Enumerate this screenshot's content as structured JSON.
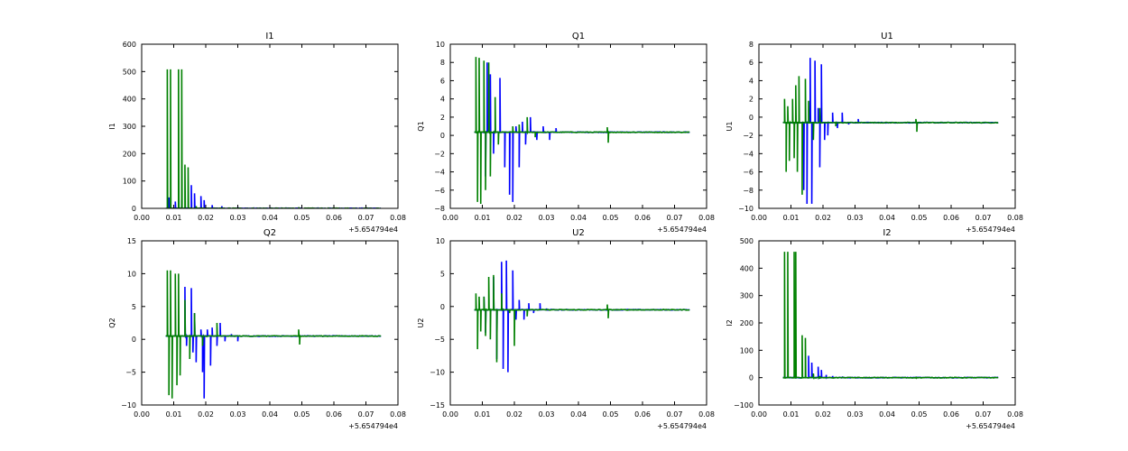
{
  "chart_data": [
    {
      "type": "line",
      "title": "I1",
      "xlabel": "",
      "ylabel": "I1",
      "xlim": [
        0.0,
        0.08
      ],
      "ylim": [
        0,
        600
      ],
      "xticks": [
        "0.00",
        "0.01",
        "0.02",
        "0.03",
        "0.04",
        "0.05",
        "0.06",
        "0.07",
        "0.08"
      ],
      "yticks": [
        "0",
        "100",
        "200",
        "300",
        "400",
        "500",
        "600"
      ],
      "offset_text": "+5.654794e4",
      "series": [
        {
          "color": "#0000ff",
          "baseline": 0,
          "spikes": [
            [
              0.0085,
              40
            ],
            [
              0.0105,
              25
            ],
            [
              0.0125,
              30
            ],
            [
              0.0155,
              85
            ],
            [
              0.0165,
              55
            ],
            [
              0.0185,
              45
            ],
            [
              0.0195,
              30
            ],
            [
              0.022,
              12
            ],
            [
              0.025,
              8
            ],
            [
              0.03,
              5
            ],
            [
              0.035,
              3
            ],
            [
              0.045,
              3
            ],
            [
              0.055,
              3
            ]
          ]
        },
        {
          "color": "#008000",
          "baseline": 0,
          "spikes": [
            [
              0.008,
              508
            ],
            [
              0.009,
              508
            ],
            [
              0.0115,
              508
            ],
            [
              0.0125,
              508
            ],
            [
              0.0135,
              160
            ],
            [
              0.0145,
              150
            ],
            [
              0.017,
              8
            ],
            [
              0.049,
              4
            ],
            [
              0.06,
              3
            ],
            [
              0.07,
              3
            ]
          ]
        }
      ]
    },
    {
      "type": "line",
      "title": "Q1",
      "xlabel": "",
      "ylabel": "Q1",
      "xlim": [
        0.0,
        0.08
      ],
      "ylim": [
        -8,
        10
      ],
      "xticks": [
        "0.00",
        "0.01",
        "0.02",
        "0.03",
        "0.04",
        "0.05",
        "0.06",
        "0.07",
        "0.08"
      ],
      "yticks": [
        "−8",
        "−6",
        "−4",
        "−2",
        "0",
        "2",
        "4",
        "6",
        "8",
        "10"
      ],
      "offset_text": "+5.654794e4",
      "series": [
        {
          "color": "#0000ff",
          "baseline": 0.35,
          "spikes": [
            [
              0.011,
              -4.5
            ],
            [
              0.0115,
              8
            ],
            [
              0.0125,
              6.7
            ],
            [
              0.0135,
              -2
            ],
            [
              0.0155,
              6.3
            ],
            [
              0.017,
              -3.5
            ],
            [
              0.0185,
              -6.5
            ],
            [
              0.0195,
              -7.3
            ],
            [
              0.0205,
              1
            ],
            [
              0.0215,
              -3.5
            ],
            [
              0.0225,
              1.5
            ],
            [
              0.0235,
              -1
            ],
            [
              0.025,
              2
            ],
            [
              0.027,
              -0.5
            ],
            [
              0.029,
              1
            ],
            [
              0.031,
              -0.5
            ],
            [
              0.033,
              0.8
            ]
          ]
        },
        {
          "color": "#008000",
          "baseline": 0.35,
          "spikes": [
            [
              0.008,
              8.6
            ],
            [
              0.0085,
              -7.3
            ],
            [
              0.009,
              8.5
            ],
            [
              0.0095,
              -7.5
            ],
            [
              0.0105,
              8.2
            ],
            [
              0.011,
              -6
            ],
            [
              0.012,
              8
            ],
            [
              0.0125,
              -4.5
            ],
            [
              0.014,
              4.2
            ],
            [
              0.015,
              -1
            ],
            [
              0.0195,
              1
            ],
            [
              0.0215,
              1.2
            ],
            [
              0.024,
              2
            ],
            [
              0.0265,
              -0.2
            ],
            [
              0.049,
              0.9
            ],
            [
              0.0493,
              -0.8
            ]
          ]
        }
      ]
    },
    {
      "type": "line",
      "title": "U1",
      "xlabel": "",
      "ylabel": "U1",
      "xlim": [
        0.0,
        0.08
      ],
      "ylim": [
        -10,
        8
      ],
      "xticks": [
        "0.00",
        "0.01",
        "0.02",
        "0.03",
        "0.04",
        "0.05",
        "0.06",
        "0.07",
        "0.08"
      ],
      "yticks": [
        "−10",
        "−8",
        "−6",
        "−4",
        "−2",
        "0",
        "2",
        "4",
        "6",
        "8"
      ],
      "offset_text": "+5.654794e4",
      "series": [
        {
          "color": "#0000ff",
          "baseline": -0.6,
          "spikes": [
            [
              0.014,
              -8
            ],
            [
              0.015,
              -9.5
            ],
            [
              0.016,
              6.5
            ],
            [
              0.0165,
              -9.5
            ],
            [
              0.0175,
              6.2
            ],
            [
              0.0185,
              1
            ],
            [
              0.019,
              -5.5
            ],
            [
              0.0195,
              5.8
            ],
            [
              0.0205,
              -2.5
            ],
            [
              0.0215,
              -2
            ],
            [
              0.023,
              0.5
            ],
            [
              0.0245,
              -1.2
            ],
            [
              0.026,
              0.5
            ],
            [
              0.028,
              -0.8
            ],
            [
              0.031,
              -0.2
            ]
          ]
        },
        {
          "color": "#008000",
          "baseline": -0.6,
          "spikes": [
            [
              0.008,
              2
            ],
            [
              0.0085,
              -6
            ],
            [
              0.009,
              1.2
            ],
            [
              0.0095,
              -4.8
            ],
            [
              0.0105,
              2
            ],
            [
              0.011,
              -4.5
            ],
            [
              0.0115,
              3.5
            ],
            [
              0.012,
              -6
            ],
            [
              0.0125,
              4.5
            ],
            [
              0.0135,
              -8.5
            ],
            [
              0.0145,
              4.2
            ],
            [
              0.0155,
              1.8
            ],
            [
              0.017,
              -2.5
            ],
            [
              0.019,
              1
            ],
            [
              0.024,
              -1
            ],
            [
              0.049,
              -0.2
            ],
            [
              0.0493,
              -1.6
            ]
          ]
        }
      ]
    },
    {
      "type": "line",
      "title": "Q2",
      "xlabel": "",
      "ylabel": "Q2",
      "xlim": [
        0.0,
        0.08
      ],
      "ylim": [
        -10,
        15
      ],
      "xticks": [
        "0.00",
        "0.01",
        "0.02",
        "0.03",
        "0.04",
        "0.05",
        "0.06",
        "0.07",
        "0.08"
      ],
      "yticks": [
        "−10",
        "−5",
        "0",
        "5",
        "10",
        "15"
      ],
      "offset_text": "+5.654794e4",
      "series": [
        {
          "color": "#0000ff",
          "baseline": 0.5,
          "spikes": [
            [
              0.0135,
              8
            ],
            [
              0.014,
              -1
            ],
            [
              0.0155,
              7.8
            ],
            [
              0.016,
              -2
            ],
            [
              0.0165,
              4
            ],
            [
              0.017,
              -3.5
            ],
            [
              0.0185,
              1.5
            ],
            [
              0.019,
              -5
            ],
            [
              0.0195,
              -9
            ],
            [
              0.0205,
              1.5
            ],
            [
              0.0215,
              -4
            ],
            [
              0.022,
              1.8
            ],
            [
              0.0235,
              -1
            ],
            [
              0.0245,
              2.5
            ],
            [
              0.026,
              -0.3
            ],
            [
              0.028,
              0.8
            ],
            [
              0.03,
              -0.3
            ]
          ]
        },
        {
          "color": "#008000",
          "baseline": 0.5,
          "spikes": [
            [
              0.008,
              10.5
            ],
            [
              0.0085,
              -8.5
            ],
            [
              0.009,
              10.5
            ],
            [
              0.0095,
              -9
            ],
            [
              0.0105,
              10
            ],
            [
              0.011,
              -7
            ],
            [
              0.0115,
              10
            ],
            [
              0.012,
              -5.5
            ],
            [
              0.0135,
              6
            ],
            [
              0.015,
              -3
            ],
            [
              0.0165,
              4
            ],
            [
              0.019,
              -1
            ],
            [
              0.0235,
              2.5
            ],
            [
              0.049,
              1.5
            ],
            [
              0.0493,
              -0.8
            ]
          ]
        }
      ]
    },
    {
      "type": "line",
      "title": "U2",
      "xlabel": "",
      "ylabel": "U2",
      "xlim": [
        0.0,
        0.08
      ],
      "ylim": [
        -15,
        10
      ],
      "xticks": [
        "0.00",
        "0.01",
        "0.02",
        "0.03",
        "0.04",
        "0.05",
        "0.06",
        "0.07",
        "0.08"
      ],
      "yticks": [
        "−15",
        "−10",
        "−5",
        "0",
        "5",
        "10"
      ],
      "offset_text": "+5.654794e4",
      "series": [
        {
          "color": "#0000ff",
          "baseline": -0.5,
          "spikes": [
            [
              0.0105,
              1.5
            ],
            [
              0.011,
              -4
            ],
            [
              0.0135,
              4.5
            ],
            [
              0.0145,
              -8
            ],
            [
              0.016,
              6.8
            ],
            [
              0.0165,
              -9.5
            ],
            [
              0.0175,
              7
            ],
            [
              0.018,
              -10
            ],
            [
              0.0195,
              5.5
            ],
            [
              0.0205,
              -2
            ],
            [
              0.0215,
              1
            ],
            [
              0.023,
              -2
            ],
            [
              0.0245,
              0.5
            ],
            [
              0.026,
              -1
            ],
            [
              0.028,
              0.5
            ],
            [
              0.03,
              -0.3
            ]
          ]
        },
        {
          "color": "#008000",
          "baseline": -0.5,
          "spikes": [
            [
              0.008,
              2
            ],
            [
              0.0085,
              -6.5
            ],
            [
              0.009,
              1.5
            ],
            [
              0.0095,
              -3.8
            ],
            [
              0.0105,
              1.5
            ],
            [
              0.011,
              -4.5
            ],
            [
              0.012,
              4.5
            ],
            [
              0.0125,
              -5
            ],
            [
              0.0135,
              4.8
            ],
            [
              0.0145,
              -8.5
            ],
            [
              0.016,
              2
            ],
            [
              0.0185,
              -1
            ],
            [
              0.02,
              -6
            ],
            [
              0.024,
              -1.5
            ],
            [
              0.049,
              0.3
            ],
            [
              0.0493,
              -1.8
            ]
          ]
        }
      ]
    },
    {
      "type": "line",
      "title": "I2",
      "xlabel": "",
      "ylabel": "I2",
      "xlim": [
        0.0,
        0.08
      ],
      "ylim": [
        -100,
        500
      ],
      "xticks": [
        "0.00",
        "0.01",
        "0.02",
        "0.03",
        "0.04",
        "0.05",
        "0.06",
        "0.07",
        "0.08"
      ],
      "yticks": [
        "−100",
        "0",
        "100",
        "200",
        "300",
        "400",
        "500"
      ],
      "offset_text": "+5.654794e4",
      "series": [
        {
          "color": "#0000ff",
          "baseline": 0,
          "spikes": [
            [
              0.0155,
              80
            ],
            [
              0.0165,
              55
            ],
            [
              0.0185,
              40
            ],
            [
              0.0195,
              28
            ],
            [
              0.021,
              10
            ],
            [
              0.023,
              6
            ],
            [
              0.026,
              4
            ],
            [
              0.03,
              3
            ]
          ]
        },
        {
          "color": "#008000",
          "baseline": 0,
          "spikes": [
            [
              0.008,
              460
            ],
            [
              0.009,
              460
            ],
            [
              0.011,
              460
            ],
            [
              0.0115,
              460
            ],
            [
              0.0135,
              155
            ],
            [
              0.0145,
              145
            ],
            [
              0.017,
              15
            ],
            [
              0.019,
              6
            ],
            [
              0.049,
              3
            ]
          ]
        }
      ]
    }
  ]
}
